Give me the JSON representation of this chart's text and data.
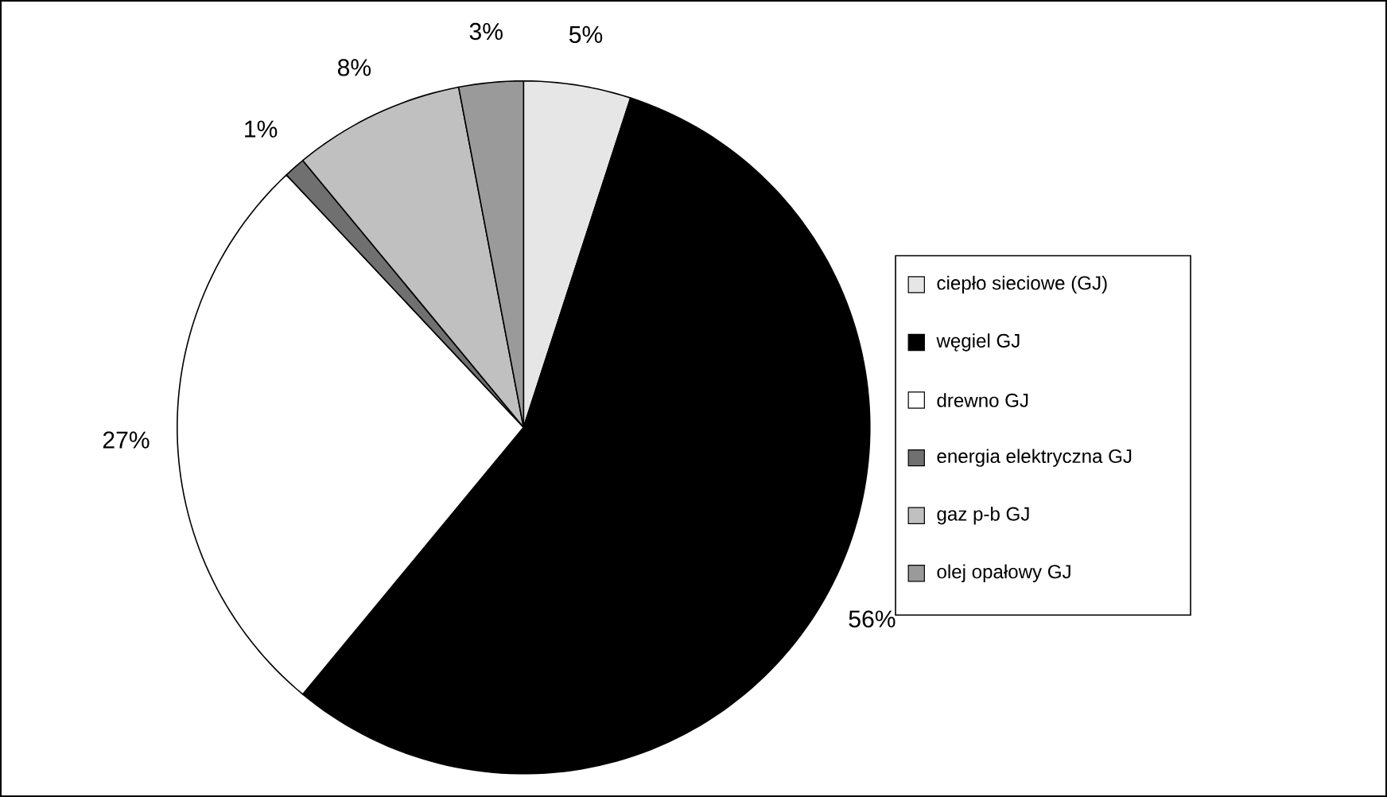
{
  "chart_data": {
    "type": "pie",
    "categories": [
      "ciepło sieciowe (GJ)",
      "węgiel GJ",
      "drewno GJ",
      "energia elektryczna GJ",
      "gaz p-b GJ",
      "olej opałowy GJ"
    ],
    "values": [
      5,
      56,
      27,
      1,
      8,
      3
    ],
    "value_labels": [
      "5%",
      "56%",
      "27%",
      "1%",
      "8%",
      "3%"
    ],
    "colors": [
      "#e6e6e6",
      "#000000",
      "#ffffff",
      "#707070",
      "#c0c0c0",
      "#9a9a9a"
    ],
    "legend": "right"
  }
}
